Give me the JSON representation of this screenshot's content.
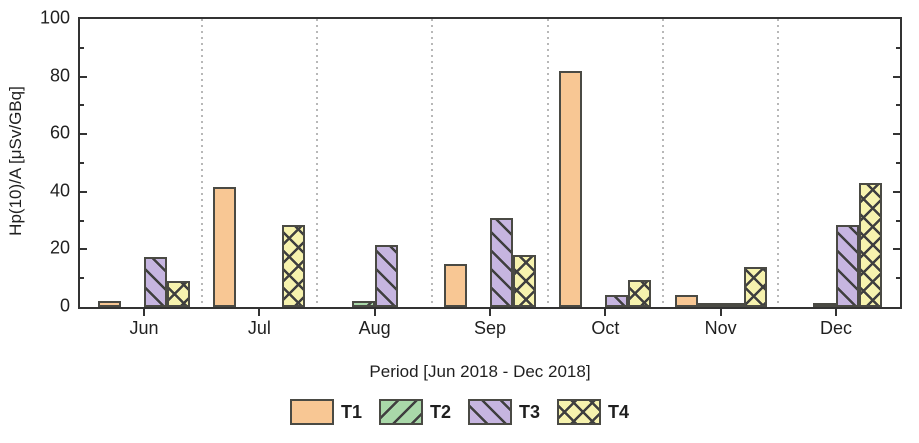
{
  "chart_data": {
    "type": "bar",
    "title": "",
    "xlabel": "Period [Jun 2018 - Dec 2018]",
    "ylabel": "Hp(10)/A [μSv/GBq]",
    "categories": [
      "Jun",
      "Jul",
      "Aug",
      "Sep",
      "Oct",
      "Nov",
      "Dec"
    ],
    "series": [
      {
        "name": "T1",
        "fill": "#f8c794",
        "hatch": "none",
        "values": [
          2,
          41.5,
          0,
          15,
          82,
          4,
          0
        ]
      },
      {
        "name": "T2",
        "fill": "#a9d8a9",
        "hatch": "forward-diagonal",
        "values": [
          0,
          0,
          2,
          0,
          0,
          1,
          1.5
        ]
      },
      {
        "name": "T3",
        "fill": "#c6b5e0",
        "hatch": "backward-diagonal",
        "values": [
          17.5,
          0,
          21.5,
          31,
          4,
          1,
          28.5
        ]
      },
      {
        "name": "T4",
        "fill": "#f6f2ae",
        "hatch": "cross",
        "values": [
          9,
          28.5,
          0,
          18,
          9.5,
          14,
          43
        ]
      }
    ],
    "ylim": [
      0,
      100
    ],
    "y_major_ticks": [
      0,
      20,
      40,
      60,
      80,
      100
    ],
    "y_minor_ticks": [
      10,
      30,
      50,
      70,
      90
    ],
    "grid": "vertical dotted separators between month groups",
    "legend_position": "bottom-center",
    "colors": {
      "axis": "#333333",
      "bar_edge": "#4a4a44",
      "hatch": "#3f3f3f",
      "grid": "#b8b8b8",
      "text": "#1f1f1f"
    }
  }
}
